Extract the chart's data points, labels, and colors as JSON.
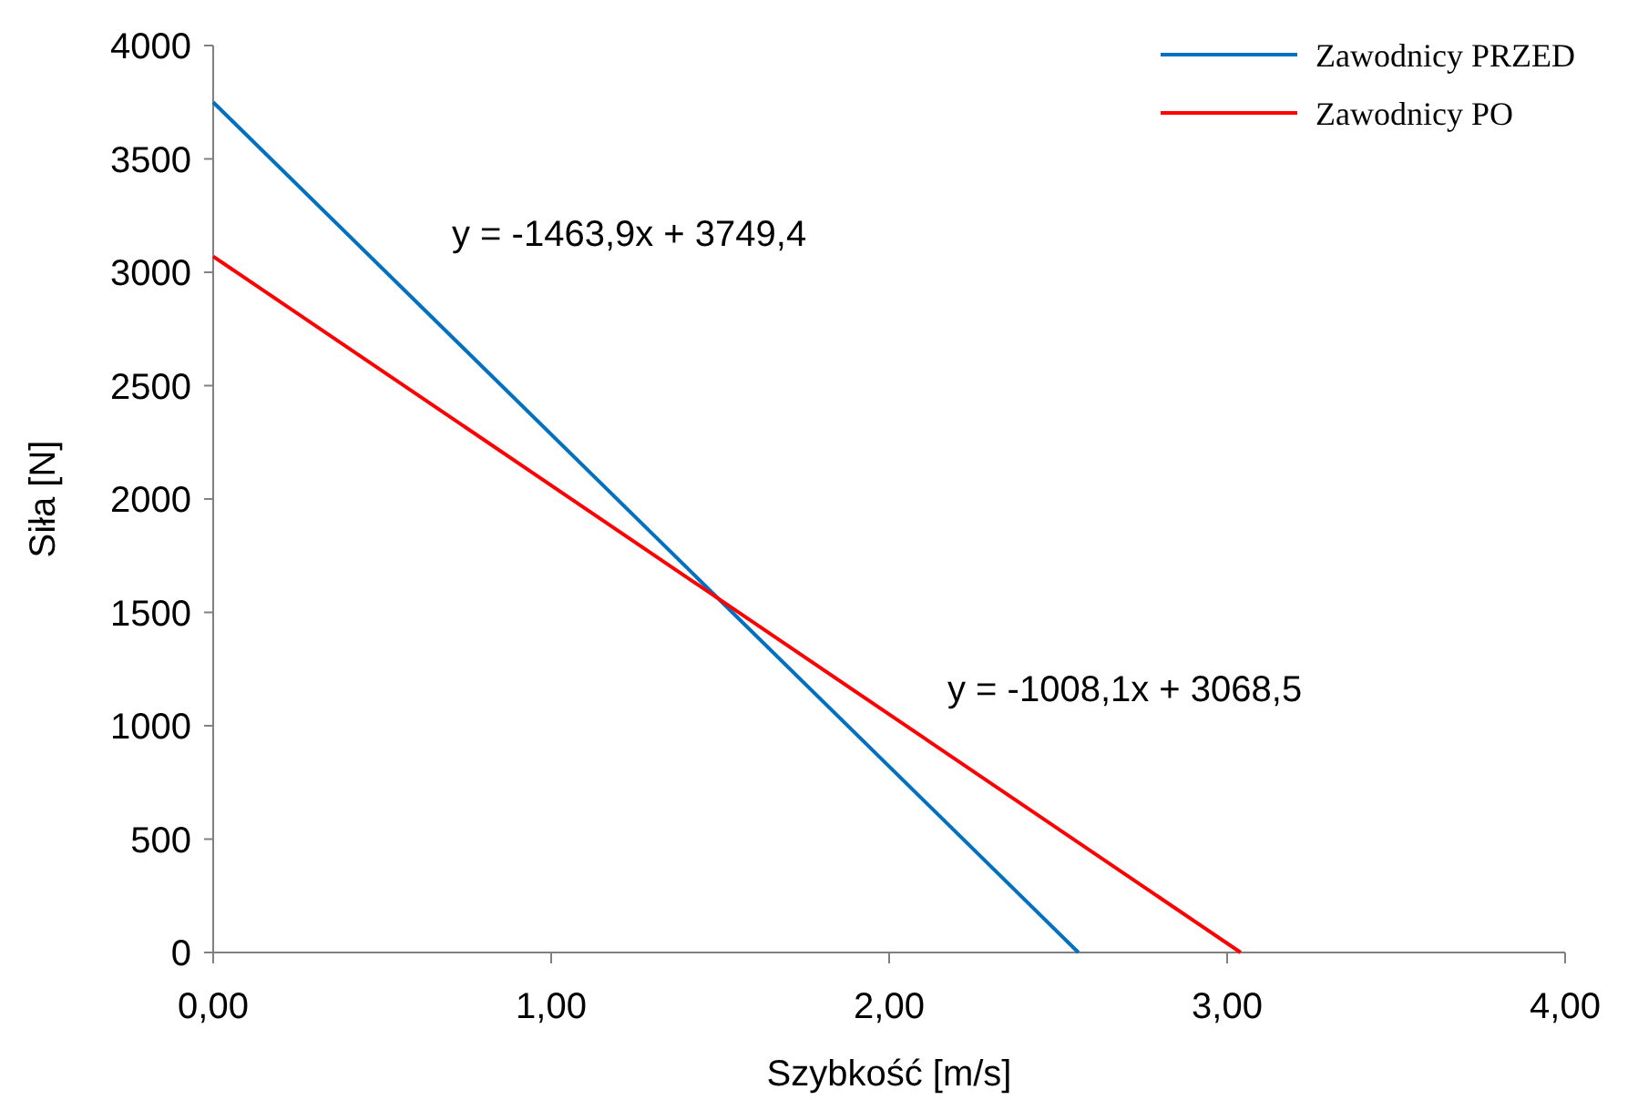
{
  "chart_data": {
    "type": "line",
    "xlabel": "Szybkość [m/s]",
    "ylabel": "Siła [N]",
    "xlim": [
      0,
      4
    ],
    "xticks": [
      {
        "value": 0,
        "label": "0,00"
      },
      {
        "value": 1,
        "label": "1,00"
      },
      {
        "value": 2,
        "label": "2,00"
      },
      {
        "value": 3,
        "label": "3,00"
      },
      {
        "value": 4,
        "label": "4,00"
      }
    ],
    "ylim": [
      0,
      4000
    ],
    "yticks": [
      0,
      500,
      1000,
      1500,
      2000,
      2500,
      3000,
      3500,
      4000
    ],
    "series": [
      {
        "name": "Zawodnicy PRZED",
        "color": "#0070c0",
        "x": [
          0,
          2.56
        ],
        "values": [
          3750,
          0
        ]
      },
      {
        "name": "Zawodnicy PO",
        "color": "#ff0000",
        "x": [
          0,
          3.04
        ],
        "values": [
          3070,
          0
        ]
      }
    ],
    "annotations": [
      "y = -1463,9x + 3749,4",
      "y = -1008,1x + 3068,5"
    ],
    "grid": false,
    "legend": "top right",
    "marker": "none",
    "line_style": "solid"
  }
}
